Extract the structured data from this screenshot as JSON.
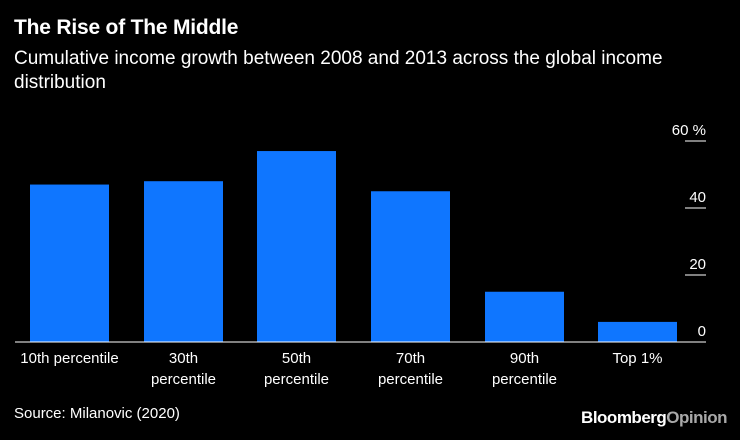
{
  "header": {
    "title": "The Rise of The Middle",
    "subtitle": "Cumulative income growth between 2008 and 2013 across the global income distribution"
  },
  "footer": {
    "source": "Source: Milanovic (2020)",
    "brand_main": "Bloomberg",
    "brand_accent": "Opinion"
  },
  "colors": {
    "background": "#000000",
    "bar": "#0f76ff",
    "text": "#ffffff",
    "gridline": "#ffffff",
    "brand_accent": "#a8a8a8"
  },
  "chart_data": {
    "type": "bar",
    "title": "The Rise of The Middle",
    "subtitle": "Cumulative income growth between 2008 and 2013 across the global income distribution",
    "categories": [
      [
        "10th percentile"
      ],
      [
        "30th",
        "percentile"
      ],
      [
        "50th",
        "percentile"
      ],
      [
        "70th",
        "percentile"
      ],
      [
        "90th",
        "percentile"
      ],
      [
        "Top 1%"
      ]
    ],
    "values": [
      47,
      48,
      57,
      45,
      15,
      6
    ],
    "ylim": [
      0,
      60
    ],
    "yticks": [
      0,
      20,
      40,
      60
    ],
    "ytick_labels": [
      "0",
      "20",
      "40",
      "60 %"
    ],
    "xlabel": "",
    "ylabel": "",
    "y_axis_side": "right",
    "grid": true
  }
}
